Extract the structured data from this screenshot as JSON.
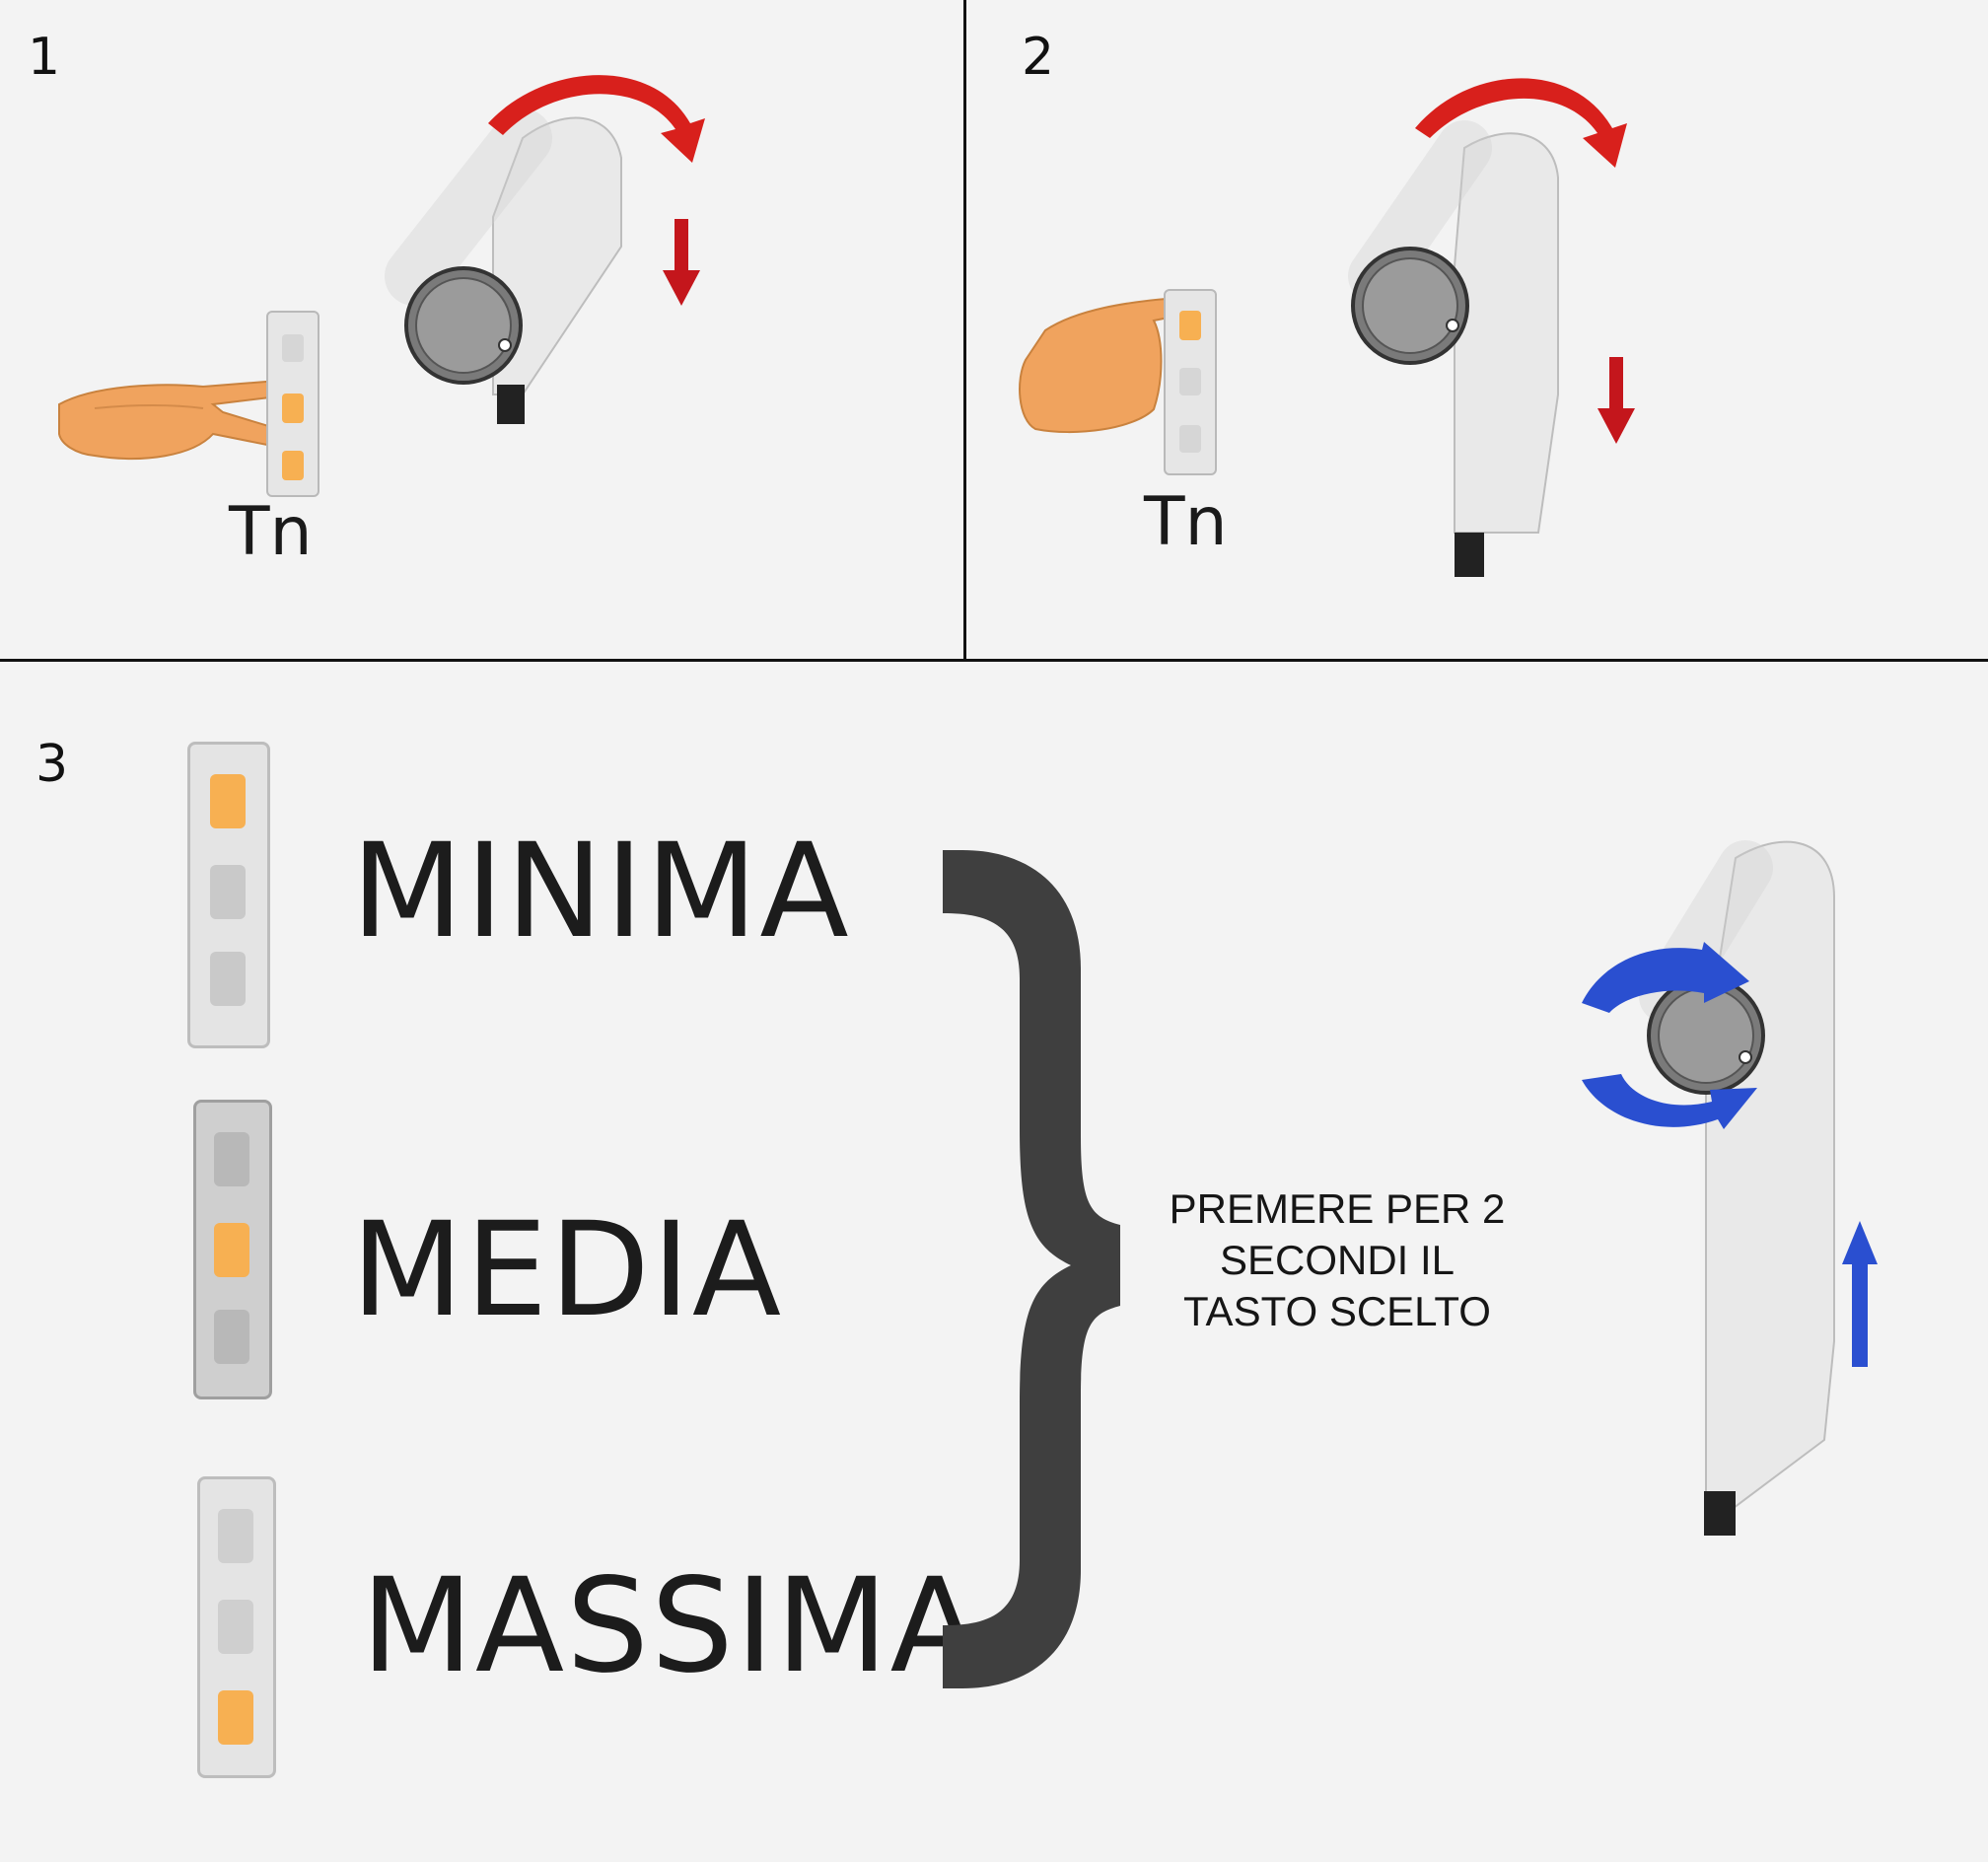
{
  "panels": [
    {
      "number": "1",
      "button_label": "Tn"
    },
    {
      "number": "2",
      "button_label": "Tn"
    },
    {
      "number": "3"
    }
  ],
  "levels": [
    {
      "label": "MINIMA",
      "highlighted_key": "up"
    },
    {
      "label": "MEDIA",
      "highlighted_key": "stop"
    },
    {
      "label": "MASSIMA",
      "highlighted_key": "down"
    }
  ],
  "instruction": {
    "line1": "PREMERE PER 2",
    "line2": "SECONDI IL",
    "line3": "TASTO SCELTO"
  },
  "colors": {
    "rotation_arrow": "#d8201c",
    "direction_arrow": "#c4161c",
    "blue_arrow": "#2a4fd0",
    "key_highlight": "#f7b052",
    "key_normal": "#c9c9c9",
    "brace": "#3f3f3f",
    "hand": "#f0a35e"
  },
  "icons": {
    "remote": "wall-remote-icon",
    "hand": "hand-pointing-icon",
    "tube": "roller-tube-icon",
    "rotate": "rotation-arrow-icon",
    "down": "arrow-down-icon",
    "up": "arrow-up-icon"
  }
}
